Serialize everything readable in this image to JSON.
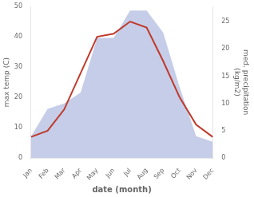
{
  "chart_data": {
    "type": "line",
    "xlabel": "date (month)",
    "ylabel": "max temp (C)",
    "y2label": "med. precipitation\n(kg/m2)",
    "categories": [
      "Jan",
      "Feb",
      "Mar",
      "Apr",
      "May",
      "Jun",
      "Jul",
      "Aug",
      "Sep",
      "Oct",
      "Nov",
      "Dec"
    ],
    "series": [
      {
        "type": "area",
        "color": "#c5cde8",
        "axis": "y2",
        "values": [
          4,
          9,
          10,
          12,
          22,
          22,
          27,
          27,
          23,
          13,
          4,
          3
        ]
      },
      {
        "type": "line",
        "color": "#c0392b",
        "values": [
          7,
          9,
          16,
          28,
          40,
          41,
          45,
          43,
          32,
          20,
          11,
          7
        ]
      }
    ],
    "ylim": [
      0,
      50
    ],
    "yticks": [
      0,
      10,
      20,
      30,
      40,
      50
    ],
    "y2lim": [
      0,
      27.78
    ],
    "y2ticks": [
      0,
      5,
      10,
      15,
      20,
      25
    ],
    "grid": false
  }
}
